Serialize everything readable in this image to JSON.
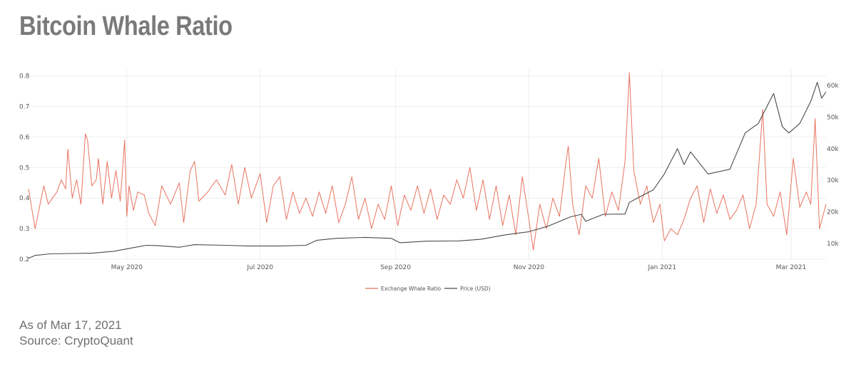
{
  "header": {
    "title": "Bitcoin Whale Ratio"
  },
  "footer": {
    "as_of": "As of Mar 17, 2021",
    "source": "Source: CryptoQuant"
  },
  "colors": {
    "ratio": "#e8735f",
    "price": "#4a4a4a",
    "grid": "#eeeeee"
  },
  "chart_data": {
    "type": "line",
    "title": "Bitcoin Whale Ratio",
    "x_range": [
      "2020-03-17",
      "2021-03-17"
    ],
    "x_ticks": [
      {
        "date": "2020-05-01",
        "label": "May 2020"
      },
      {
        "date": "2020-07-01",
        "label": "Jul 2020"
      },
      {
        "date": "2020-09-01",
        "label": "Sep 2020"
      },
      {
        "date": "2020-11-01",
        "label": "Nov 2020"
      },
      {
        "date": "2021-01-01",
        "label": "Jan 2021"
      },
      {
        "date": "2021-03-01",
        "label": "Mar 2021"
      }
    ],
    "y_left": {
      "range": [
        0.2,
        0.82
      ],
      "ticks": [
        0.2,
        0.3,
        0.4,
        0.5,
        0.6,
        0.7,
        0.8
      ],
      "tick_labels": [
        "0.2",
        "0.3",
        "0.4",
        "0.5",
        "0.6",
        "0.7",
        "0.8"
      ]
    },
    "y_right": {
      "range": [
        5000,
        65000
      ],
      "ticks": [
        10000,
        20000,
        30000,
        40000,
        50000,
        60000
      ],
      "tick_labels": [
        "10k",
        "20k",
        "30k",
        "40k",
        "50k",
        "60k"
      ]
    },
    "legend": {
      "position": "bottom-center",
      "entries": [
        "Exchange Whale Ratio",
        "Price (USD)"
      ]
    },
    "series": [
      {
        "name": "Exchange Whale Ratio",
        "axis": "left",
        "points": [
          [
            "2020-03-17",
            0.43
          ],
          [
            "2020-03-20",
            0.3
          ],
          [
            "2020-03-24",
            0.44
          ],
          [
            "2020-03-26",
            0.38
          ],
          [
            "2020-03-30",
            0.42
          ],
          [
            "2020-04-01",
            0.46
          ],
          [
            "2020-04-03",
            0.43
          ],
          [
            "2020-04-04",
            0.56
          ],
          [
            "2020-04-06",
            0.4
          ],
          [
            "2020-04-08",
            0.46
          ],
          [
            "2020-04-10",
            0.38
          ],
          [
            "2020-04-12",
            0.61
          ],
          [
            "2020-04-13",
            0.59
          ],
          [
            "2020-04-15",
            0.44
          ],
          [
            "2020-04-17",
            0.46
          ],
          [
            "2020-04-18",
            0.53
          ],
          [
            "2020-04-20",
            0.38
          ],
          [
            "2020-04-22",
            0.52
          ],
          [
            "2020-04-24",
            0.4
          ],
          [
            "2020-04-26",
            0.49
          ],
          [
            "2020-04-28",
            0.39
          ],
          [
            "2020-04-30",
            0.59
          ],
          [
            "2020-05-01",
            0.34
          ],
          [
            "2020-05-02",
            0.44
          ],
          [
            "2020-05-04",
            0.36
          ],
          [
            "2020-05-06",
            0.42
          ],
          [
            "2020-05-09",
            0.41
          ],
          [
            "2020-05-11",
            0.35
          ],
          [
            "2020-05-14",
            0.31
          ],
          [
            "2020-05-17",
            0.44
          ],
          [
            "2020-05-19",
            0.41
          ],
          [
            "2020-05-21",
            0.38
          ],
          [
            "2020-05-25",
            0.45
          ],
          [
            "2020-05-27",
            0.32
          ],
          [
            "2020-05-30",
            0.49
          ],
          [
            "2020-06-01",
            0.52
          ],
          [
            "2020-06-03",
            0.39
          ],
          [
            "2020-06-07",
            0.42
          ],
          [
            "2020-06-11",
            0.46
          ],
          [
            "2020-06-15",
            0.41
          ],
          [
            "2020-06-18",
            0.51
          ],
          [
            "2020-06-21",
            0.38
          ],
          [
            "2020-06-24",
            0.5
          ],
          [
            "2020-06-27",
            0.4
          ],
          [
            "2020-07-01",
            0.48
          ],
          [
            "2020-07-04",
            0.32
          ],
          [
            "2020-07-07",
            0.44
          ],
          [
            "2020-07-10",
            0.47
          ],
          [
            "2020-07-13",
            0.33
          ],
          [
            "2020-07-16",
            0.42
          ],
          [
            "2020-07-19",
            0.35
          ],
          [
            "2020-07-22",
            0.4
          ],
          [
            "2020-07-25",
            0.34
          ],
          [
            "2020-07-28",
            0.42
          ],
          [
            "2020-07-31",
            0.35
          ],
          [
            "2020-08-03",
            0.44
          ],
          [
            "2020-08-06",
            0.32
          ],
          [
            "2020-08-09",
            0.38
          ],
          [
            "2020-08-12",
            0.47
          ],
          [
            "2020-08-15",
            0.33
          ],
          [
            "2020-08-18",
            0.4
          ],
          [
            "2020-08-21",
            0.3
          ],
          [
            "2020-08-24",
            0.38
          ],
          [
            "2020-08-27",
            0.33
          ],
          [
            "2020-08-30",
            0.44
          ],
          [
            "2020-09-02",
            0.31
          ],
          [
            "2020-09-05",
            0.41
          ],
          [
            "2020-09-08",
            0.36
          ],
          [
            "2020-09-11",
            0.44
          ],
          [
            "2020-09-14",
            0.35
          ],
          [
            "2020-09-17",
            0.43
          ],
          [
            "2020-09-20",
            0.33
          ],
          [
            "2020-09-23",
            0.41
          ],
          [
            "2020-09-26",
            0.38
          ],
          [
            "2020-09-29",
            0.46
          ],
          [
            "2020-10-02",
            0.4
          ],
          [
            "2020-10-05",
            0.5
          ],
          [
            "2020-10-08",
            0.36
          ],
          [
            "2020-10-11",
            0.46
          ],
          [
            "2020-10-14",
            0.33
          ],
          [
            "2020-10-17",
            0.44
          ],
          [
            "2020-10-20",
            0.31
          ],
          [
            "2020-10-23",
            0.41
          ],
          [
            "2020-10-26",
            0.28
          ],
          [
            "2020-10-29",
            0.47
          ],
          [
            "2020-11-01",
            0.33
          ],
          [
            "2020-11-03",
            0.23
          ],
          [
            "2020-11-06",
            0.38
          ],
          [
            "2020-11-09",
            0.3
          ],
          [
            "2020-11-12",
            0.4
          ],
          [
            "2020-11-15",
            0.34
          ],
          [
            "2020-11-18",
            0.52
          ],
          [
            "2020-11-19",
            0.57
          ],
          [
            "2020-11-21",
            0.38
          ],
          [
            "2020-11-24",
            0.28
          ],
          [
            "2020-11-27",
            0.44
          ],
          [
            "2020-11-30",
            0.4
          ],
          [
            "2020-12-03",
            0.53
          ],
          [
            "2020-12-06",
            0.34
          ],
          [
            "2020-12-09",
            0.42
          ],
          [
            "2020-12-12",
            0.36
          ],
          [
            "2020-12-15",
            0.52
          ],
          [
            "2020-12-17",
            0.81
          ],
          [
            "2020-12-19",
            0.49
          ],
          [
            "2020-12-22",
            0.38
          ],
          [
            "2020-12-25",
            0.44
          ],
          [
            "2020-12-28",
            0.32
          ],
          [
            "2020-12-31",
            0.38
          ],
          [
            "2021-01-02",
            0.26
          ],
          [
            "2021-01-05",
            0.3
          ],
          [
            "2021-01-08",
            0.28
          ],
          [
            "2021-01-11",
            0.33
          ],
          [
            "2021-01-14",
            0.4
          ],
          [
            "2021-01-17",
            0.44
          ],
          [
            "2021-01-20",
            0.32
          ],
          [
            "2021-01-23",
            0.43
          ],
          [
            "2021-01-26",
            0.35
          ],
          [
            "2021-01-29",
            0.41
          ],
          [
            "2021-02-01",
            0.33
          ],
          [
            "2021-02-04",
            0.36
          ],
          [
            "2021-02-07",
            0.41
          ],
          [
            "2021-02-10",
            0.3
          ],
          [
            "2021-02-13",
            0.38
          ],
          [
            "2021-02-16",
            0.69
          ],
          [
            "2021-02-18",
            0.38
          ],
          [
            "2021-02-21",
            0.34
          ],
          [
            "2021-02-24",
            0.42
          ],
          [
            "2021-02-27",
            0.28
          ],
          [
            "2021-03-02",
            0.53
          ],
          [
            "2021-03-05",
            0.37
          ],
          [
            "2021-03-08",
            0.42
          ],
          [
            "2021-03-10",
            0.38
          ],
          [
            "2021-03-12",
            0.66
          ],
          [
            "2021-03-14",
            0.3
          ],
          [
            "2021-03-17",
            0.38
          ]
        ]
      },
      {
        "name": "Price (USD)",
        "axis": "right",
        "points": [
          [
            "2020-03-17",
            5300
          ],
          [
            "2020-03-20",
            6200
          ],
          [
            "2020-03-27",
            6700
          ],
          [
            "2020-04-05",
            6800
          ],
          [
            "2020-04-15",
            6900
          ],
          [
            "2020-04-25",
            7500
          ],
          [
            "2020-05-05",
            8800
          ],
          [
            "2020-05-10",
            9400
          ],
          [
            "2020-05-15",
            9300
          ],
          [
            "2020-05-25",
            8800
          ],
          [
            "2020-06-01",
            9600
          ],
          [
            "2020-06-15",
            9400
          ],
          [
            "2020-06-25",
            9200
          ],
          [
            "2020-07-10",
            9200
          ],
          [
            "2020-07-22",
            9400
          ],
          [
            "2020-07-27",
            11000
          ],
          [
            "2020-08-05",
            11600
          ],
          [
            "2020-08-18",
            11900
          ],
          [
            "2020-08-30",
            11600
          ],
          [
            "2020-09-03",
            10200
          ],
          [
            "2020-09-15",
            10700
          ],
          [
            "2020-09-30",
            10800
          ],
          [
            "2020-10-10",
            11300
          ],
          [
            "2020-10-21",
            12700
          ],
          [
            "2020-11-01",
            13700
          ],
          [
            "2020-11-10",
            15500
          ],
          [
            "2020-11-20",
            18400
          ],
          [
            "2020-11-25",
            19200
          ],
          [
            "2020-11-27",
            17000
          ],
          [
            "2020-12-05",
            19200
          ],
          [
            "2020-12-15",
            19300
          ],
          [
            "2020-12-17",
            23000
          ],
          [
            "2020-12-28",
            27000
          ],
          [
            "2021-01-02",
            32000
          ],
          [
            "2021-01-08",
            40000
          ],
          [
            "2021-01-11",
            35000
          ],
          [
            "2021-01-14",
            39000
          ],
          [
            "2021-01-22",
            32000
          ],
          [
            "2021-02-01",
            33500
          ],
          [
            "2021-02-08",
            45000
          ],
          [
            "2021-02-14",
            48000
          ],
          [
            "2021-02-21",
            57500
          ],
          [
            "2021-02-25",
            47000
          ],
          [
            "2021-02-28",
            45000
          ],
          [
            "2021-03-05",
            48000
          ],
          [
            "2021-03-10",
            55000
          ],
          [
            "2021-03-13",
            61000
          ],
          [
            "2021-03-15",
            56000
          ],
          [
            "2021-03-17",
            58000
          ]
        ]
      }
    ]
  }
}
